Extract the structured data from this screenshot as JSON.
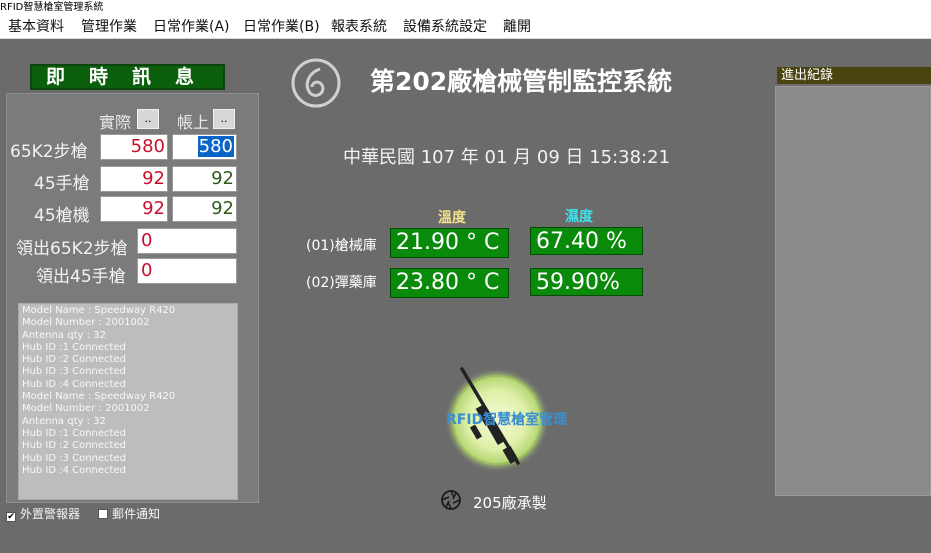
{
  "window": {
    "title": "RFID智慧槍室管理系統"
  },
  "menu": {
    "items": [
      "基本資料",
      "管理作業",
      "日常作業(A)",
      "日常作業(B)",
      "報表系統",
      "設備系統設定",
      "離開"
    ]
  },
  "info": {
    "title": "即時訊息",
    "col_actual": "實際",
    "col_book": "帳上",
    "dots": "..",
    "rows": [
      {
        "label": "65K2步槍",
        "actual": "580",
        "book": "580"
      },
      {
        "label": "45手槍",
        "actual": "92",
        "book": "92"
      },
      {
        "label": "45槍機",
        "actual": "92",
        "book": "92"
      }
    ],
    "out_rows": [
      {
        "label": "領出65K2步槍",
        "value": "0"
      },
      {
        "label": "領出45手槍",
        "value": "0"
      }
    ]
  },
  "log": [
    "Model Name :  Speedway R420",
    "Model Number : 2001002",
    "Antenna qty : 32",
    "Hub ID :1 Connected",
    "Hub ID :2 Connected",
    "Hub ID :3 Connected",
    "Hub ID :4 Connected",
    "Model Name :  Speedway R420",
    "Model Number : 2001002",
    "Antenna qty : 32",
    "Hub ID :1 Connected",
    "Hub ID :2 Connected",
    "Hub ID :3 Connected",
    "Hub ID :4 Connected"
  ],
  "checkboxes": [
    {
      "label": "外置警報器",
      "checked": true
    },
    {
      "label": "郵件通知",
      "checked": false
    }
  ],
  "main": {
    "title": "第202廠槍械管制監控系統",
    "datetime": "中華民國 107 年 01 月 09 日 15:38:21",
    "temp_header": "溫度",
    "humid_header": "濕度",
    "locations": [
      {
        "name": "(01)槍械庫",
        "temp": "21.90 ° C",
        "humid": "67.40 %"
      },
      {
        "name": "(02)彈藥庫",
        "temp": "23.80 ° C",
        "humid": "59.90%"
      }
    ],
    "logo_text": "RFID智慧槍室管理",
    "footer": "205廠承製"
  },
  "right": {
    "title": "進出紀錄"
  },
  "colors": {
    "temp_header": "#f0e08a",
    "humid_header": "#40e0e8",
    "value_bg": "#0a8a0a",
    "title_bg": "#0b5e0b"
  }
}
